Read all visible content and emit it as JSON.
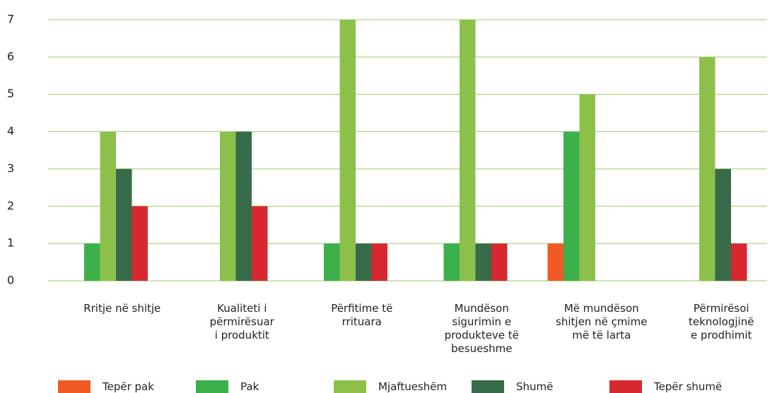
{
  "chart_data": {
    "type": "bar",
    "categories": [
      "Rritje në shitje",
      "Kualiteti i\npërmirësuar\ni produktit",
      "Përfitime të\nrrituara",
      "Mundëson\nsigurimin e\nprodukteve të\nbesueshme",
      "Më mundëson\nshitjen në çmime\nmë të larta",
      "Përmirësoi\nteknologjinë\ne prodhimit"
    ],
    "series": [
      {
        "name": "Tepër pak",
        "color": "#f15a24",
        "values": [
          0,
          0,
          0,
          0,
          1,
          0
        ]
      },
      {
        "name": "Pak",
        "color": "#3cb04a",
        "values": [
          1,
          0,
          1,
          1,
          4,
          0
        ]
      },
      {
        "name": "Mjaftueshëm",
        "color": "#8cc04b",
        "values": [
          4,
          4,
          7,
          7,
          5,
          6
        ]
      },
      {
        "name": "Shumë",
        "color": "#386b4a",
        "values": [
          3,
          4,
          1,
          1,
          0,
          3
        ]
      },
      {
        "name": "Tepër shumë",
        "color": "#d7282f",
        "values": [
          2,
          2,
          1,
          1,
          0,
          1
        ]
      }
    ],
    "ylim": [
      0,
      7
    ],
    "yticks": [
      0,
      1,
      2,
      3,
      4,
      5,
      6,
      7
    ],
    "grid": true,
    "legend": "bottom"
  }
}
